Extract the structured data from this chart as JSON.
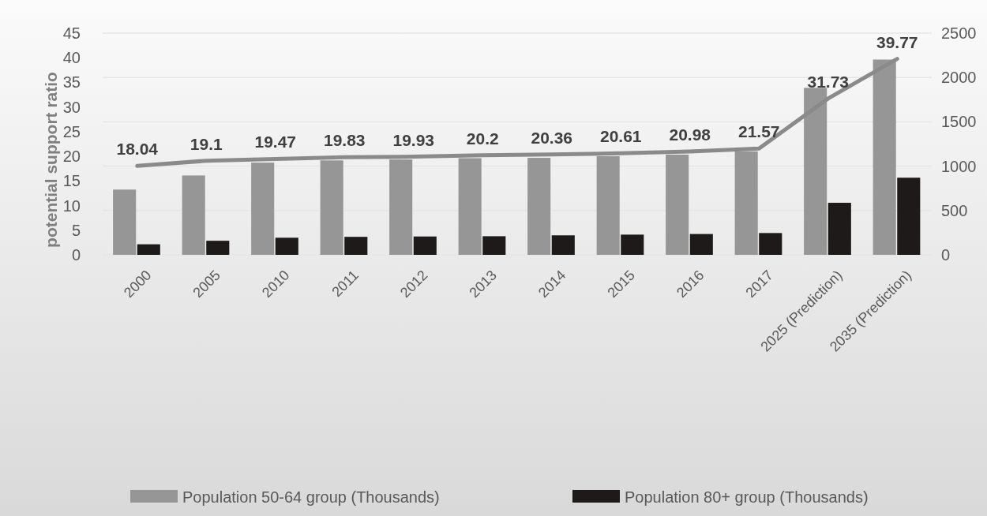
{
  "chart_data": {
    "type": "bar",
    "ylabel": "potential support ratio",
    "categories": [
      "2000",
      "2005",
      "2010",
      "2011",
      "2012",
      "2013",
      "2014",
      "2015",
      "2016",
      "2017",
      "2025 (Prediction)",
      "2035 (Prediction)"
    ],
    "series": [
      {
        "name": "Population 50-64 group (Thousands)",
        "color": "#969696",
        "axis": "y2",
        "values": [
          736,
          895,
          1040,
          1065,
          1075,
          1090,
          1094,
          1112,
          1130,
          1167,
          1883,
          2202
        ]
      },
      {
        "name": "Population 80+ group (Thousands)",
        "color": "#1e1a1a",
        "axis": "y2",
        "values": [
          119,
          159,
          193,
          203,
          207,
          210,
          220,
          228,
          235,
          246,
          587,
          870
        ]
      },
      {
        "type": "line",
        "color": "#8a8a8a",
        "values": [
          18.04,
          19.1,
          19.47,
          19.83,
          19.93,
          20.2,
          20.36,
          20.61,
          20.98,
          21.57,
          31.73,
          39.77
        ],
        "data_labels": true
      }
    ],
    "ylim": [
      0,
      45
    ],
    "yticks": [
      0,
      5,
      10,
      15,
      20,
      25,
      30,
      35,
      40,
      45
    ],
    "y2lim": [
      0,
      2500
    ],
    "y2ticks": [
      0,
      500,
      1000,
      1500,
      2000,
      2500
    ],
    "grid": true,
    "legend": "bottom"
  }
}
